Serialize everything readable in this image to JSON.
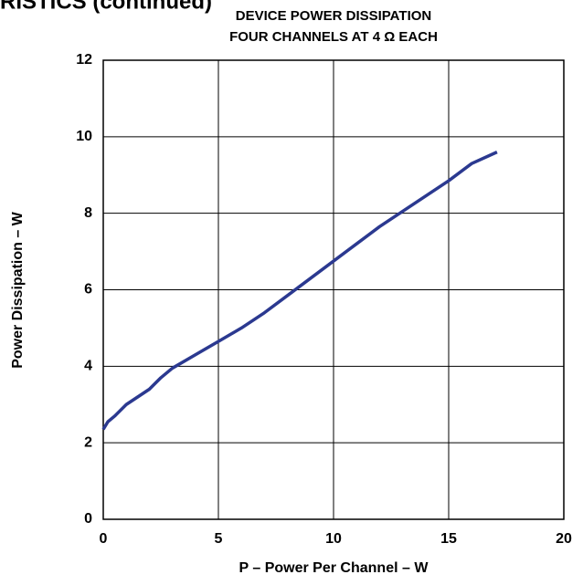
{
  "header": "RISTICS (continued)",
  "chart_data": {
    "type": "line",
    "title": [
      "DEVICE POWER DISSIPATION",
      "FOUR CHANNELS AT 4 Ω EACH"
    ],
    "x_label": "P – Power Per Channel – W",
    "y_label": "Power Dissipation – W",
    "x": [
      0,
      0.2,
      0.5,
      1,
      2,
      2.5,
      3,
      4,
      5,
      6,
      7,
      8,
      9,
      10,
      11,
      12,
      13,
      14,
      15,
      16,
      17.1
    ],
    "series": [
      {
        "name": "Power Dissipation",
        "color": "#2b3990",
        "values": [
          2.35,
          2.55,
          2.7,
          3.0,
          3.4,
          3.7,
          3.95,
          4.3,
          4.65,
          5.0,
          5.4,
          5.85,
          6.3,
          6.75,
          7.2,
          7.65,
          8.05,
          8.45,
          8.85,
          9.3,
          9.6
        ]
      }
    ],
    "xlim": [
      0,
      20
    ],
    "xticks": [
      0,
      5,
      10,
      15,
      20
    ],
    "ylim": [
      0,
      12
    ],
    "yticks": [
      0,
      2,
      4,
      6,
      8,
      10,
      12
    ],
    "grid": true
  }
}
